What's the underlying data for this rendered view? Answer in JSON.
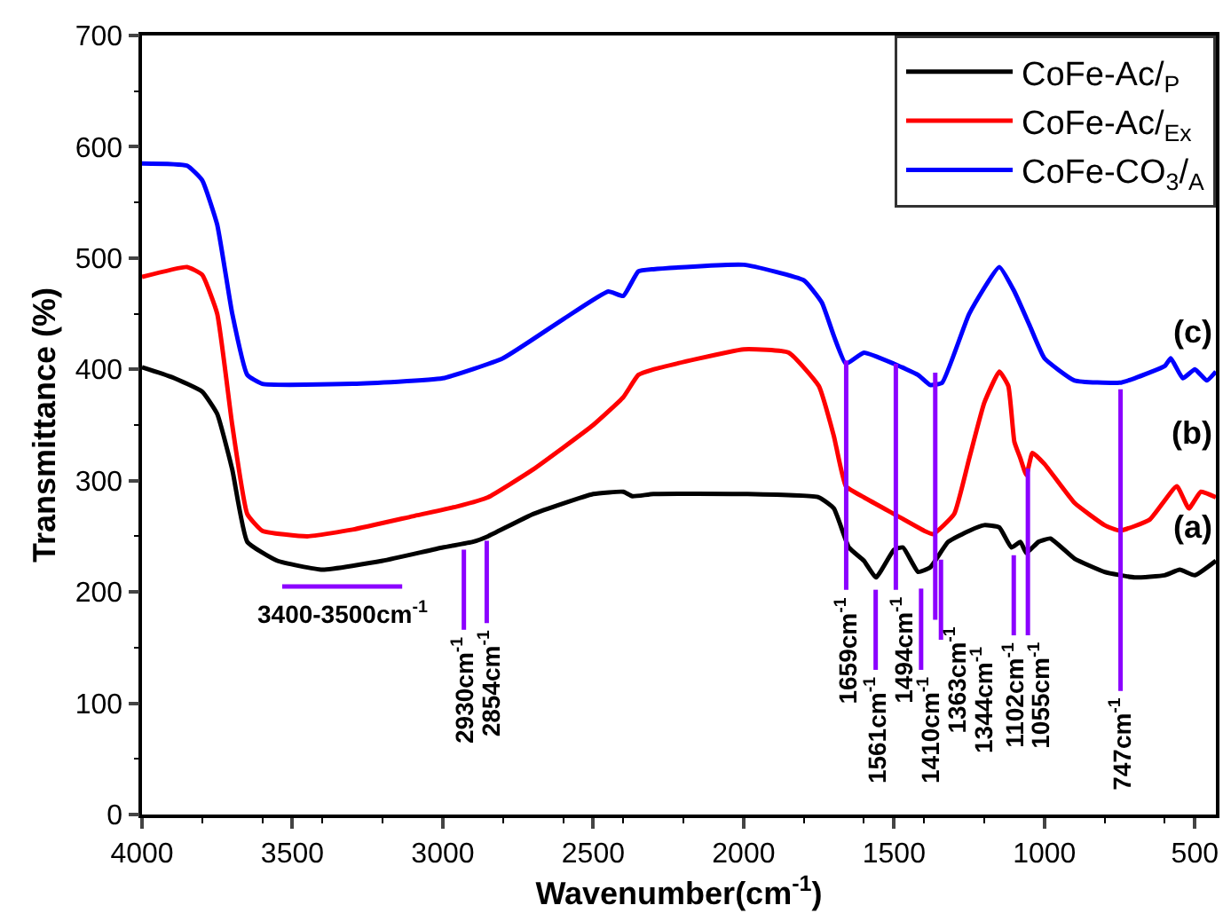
{
  "chart_data": {
    "type": "line",
    "xlabel": "Wavenumber(cm$^{-1}$)",
    "ylabel": "Transmittance (%)",
    "xlim": [
      4000,
      430
    ],
    "xticks": [
      4000,
      3500,
      3000,
      2500,
      2000,
      1500,
      1000,
      500
    ],
    "ylim": [
      0,
      700
    ],
    "yticks": [
      0,
      100,
      200,
      300,
      400,
      500,
      600,
      700
    ],
    "legend": "top right",
    "marker": "none",
    "line_style": "solid",
    "series": [
      {
        "name": "CoFe-Ac/$_{P}$",
        "color": "#000000",
        "x": [
          4000,
          3900,
          3800,
          3750,
          3700,
          3650,
          3550,
          3400,
          3200,
          3000,
          2900,
          2850,
          2700,
          2500,
          2400,
          2370,
          2300,
          2000,
          1750,
          1700,
          1650,
          1600,
          1560,
          1500,
          1470,
          1420,
          1380,
          1320,
          1250,
          1200,
          1150,
          1110,
          1080,
          1060,
          1020,
          980,
          900,
          800,
          700,
          600,
          550,
          500,
          430
        ],
        "values": [
          402,
          393,
          380,
          360,
          310,
          245,
          228,
          220,
          228,
          240,
          245,
          250,
          270,
          288,
          290,
          286,
          288,
          288,
          285,
          275,
          240,
          228,
          213,
          238,
          240,
          218,
          222,
          245,
          255,
          260,
          258,
          240,
          245,
          235,
          245,
          248,
          230,
          218,
          213,
          215,
          220,
          215,
          228
        ]
      },
      {
        "name": "CoFe-Ac/$_{Ex}$",
        "color": "#ff0000",
        "x": [
          4000,
          3850,
          3800,
          3750,
          3700,
          3650,
          3600,
          3450,
          3300,
          3100,
          2950,
          2850,
          2700,
          2500,
          2400,
          2350,
          2300,
          2000,
          1850,
          1750,
          1700,
          1660,
          1600,
          1500,
          1400,
          1370,
          1300,
          1250,
          1200,
          1150,
          1120,
          1100,
          1080,
          1060,
          1040,
          1000,
          900,
          800,
          750,
          650,
          560,
          520,
          480,
          430
        ],
        "values": [
          483,
          492,
          485,
          450,
          350,
          270,
          255,
          250,
          256,
          268,
          277,
          285,
          310,
          350,
          375,
          395,
          400,
          418,
          415,
          385,
          340,
          295,
          285,
          270,
          255,
          252,
          270,
          320,
          370,
          398,
          385,
          335,
          320,
          305,
          325,
          315,
          280,
          260,
          255,
          265,
          295,
          275,
          290,
          285
        ]
      },
      {
        "name": "CoFe-CO$_{3}$/$_{A}$",
        "color": "#0000ff",
        "x": [
          4000,
          3850,
          3800,
          3750,
          3700,
          3650,
          3600,
          3300,
          3000,
          2800,
          2600,
          2450,
          2400,
          2350,
          2300,
          2000,
          1800,
          1740,
          1700,
          1660,
          1600,
          1500,
          1420,
          1380,
          1340,
          1250,
          1150,
          1100,
          1050,
          1000,
          900,
          750,
          700,
          600,
          580,
          540,
          500,
          460,
          430
        ],
        "values": [
          585,
          583,
          570,
          530,
          450,
          395,
          387,
          387,
          392,
          410,
          445,
          470,
          466,
          488,
          490,
          494,
          480,
          460,
          430,
          405,
          415,
          405,
          395,
          386,
          388,
          450,
          492,
          470,
          440,
          410,
          390,
          388,
          392,
          403,
          410,
          392,
          400,
          390,
          398
        ]
      },
      {
        "color": "#8b00ff",
        "x": [
          3534,
          3135
        ],
        "values": [
          205,
          205
        ]
      },
      {
        "color": "#8b00ff",
        "x": [
          2930,
          2930
        ],
        "values": [
          238,
          166
        ]
      },
      {
        "color": "#8b00ff",
        "x": [
          2854,
          2854
        ],
        "values": [
          246,
          172
        ]
      },
      {
        "color": "#8b00ff",
        "x": [
          1659,
          1659
        ],
        "values": [
          408,
          202
        ]
      },
      {
        "color": "#8b00ff",
        "x": [
          1561,
          1561
        ],
        "values": [
          202,
          130
        ]
      },
      {
        "color": "#8b00ff",
        "x": [
          1494,
          1494
        ],
        "values": [
          405,
          202
        ]
      },
      {
        "color": "#8b00ff",
        "x": [
          1410,
          1410
        ],
        "values": [
          203,
          130
        ]
      },
      {
        "color": "#8b00ff",
        "x": [
          1363,
          1363
        ],
        "values": [
          397,
          175
        ]
      },
      {
        "color": "#8b00ff",
        "x": [
          1344,
          1344
        ],
        "values": [
          229,
          157
        ]
      },
      {
        "color": "#8b00ff",
        "x": [
          1102,
          1102
        ],
        "values": [
          233,
          161
        ]
      },
      {
        "color": "#8b00ff",
        "x": [
          1055,
          1055
        ],
        "values": [
          311,
          161
        ]
      },
      {
        "color": "#8b00ff",
        "x": [
          747,
          747
        ],
        "values": [
          382,
          111
        ]
      }
    ],
    "annotations": [
      {
        "text": "3400-3500cm$^{-1}$",
        "x": 3335,
        "y": 198
      },
      {
        "text": "2930cm$^{-1}$",
        "x": 2930,
        "y": 164
      },
      {
        "text": "2854cm$^{-1}$",
        "x": 2854,
        "y": 170
      },
      {
        "text": "1659cm$^{-1}$",
        "x": 1659,
        "y": 200
      },
      {
        "text": "1561cm$^{-1}$",
        "x": 1561,
        "y": 128
      },
      {
        "text": "1494cm$^{-1}$",
        "x": 1494,
        "y": 200
      },
      {
        "text": "1410cm$^{-1}$",
        "x": 1410,
        "y": 128
      },
      {
        "text": "1363cm$^{-1}$",
        "x": 1363,
        "y": 173
      },
      {
        "text": "1344cm$^{-1}$",
        "x": 1344,
        "y": 155
      },
      {
        "text": "1102cm$^{-1}$",
        "x": 1102,
        "y": 159
      },
      {
        "text": "1055cm$^{-1}$",
        "x": 1055,
        "y": 159
      },
      {
        "text": "747cm$^{-1}$",
        "x": 747,
        "y": 109
      },
      "(c)",
      "(b)",
      "(a)"
    ]
  }
}
